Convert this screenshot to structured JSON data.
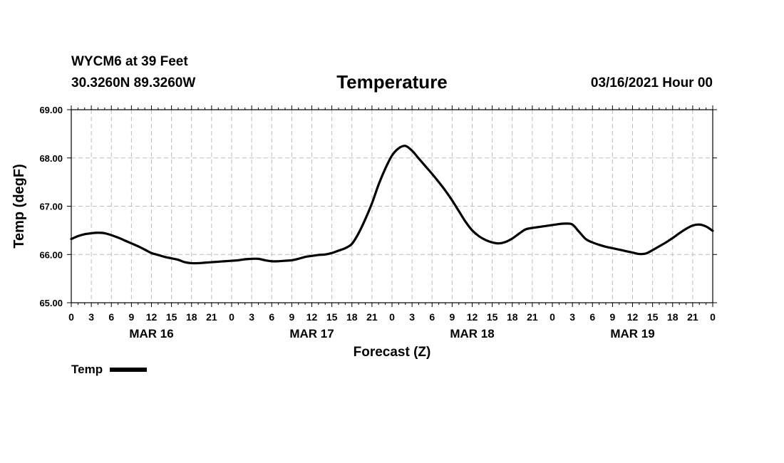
{
  "header": {
    "station": "WYCM6 at 39 Feet",
    "coordinates": "30.3260N 89.3260W",
    "run_time": "03/16/2021 Hour 00"
  },
  "chart_data": {
    "type": "line",
    "title": "Temperature",
    "xlabel": "Forecast (Z)",
    "ylabel": "Temp (degF)",
    "ylim": [
      65.0,
      69.0
    ],
    "yticks": [
      "65.00",
      "66.00",
      "67.00",
      "68.00",
      "69.00"
    ],
    "xlim_hours": [
      0,
      96
    ],
    "hour_tick_labels": [
      "0",
      "3",
      "6",
      "9",
      "12",
      "15",
      "18",
      "21",
      "0",
      "3",
      "6",
      "9",
      "12",
      "15",
      "18",
      "21",
      "0",
      "3",
      "6",
      "9",
      "12",
      "15",
      "18",
      "21",
      "0",
      "3",
      "6",
      "9",
      "12",
      "15",
      "18",
      "21",
      "0"
    ],
    "day_labels": [
      "MAR 16",
      "MAR 17",
      "MAR 18",
      "MAR 19"
    ],
    "grid": true,
    "legend_position": "bottom-left",
    "series": [
      {
        "name": "Temp",
        "color": "#000000",
        "x_hours": [
          0,
          1,
          2,
          3,
          4,
          5,
          6,
          7,
          8,
          9,
          10,
          11,
          12,
          13,
          14,
          15,
          16,
          17,
          18,
          19,
          20,
          21,
          22,
          23,
          24,
          25,
          26,
          27,
          28,
          29,
          30,
          31,
          32,
          33,
          34,
          35,
          36,
          37,
          38,
          39,
          40,
          41,
          42,
          43,
          44,
          45,
          46,
          47,
          48,
          49,
          50,
          51,
          52,
          53,
          54,
          55,
          56,
          57,
          58,
          59,
          60,
          61,
          62,
          63,
          64,
          65,
          66,
          67,
          68,
          69,
          70,
          71,
          72,
          73,
          74,
          75,
          76,
          77,
          78,
          79,
          80,
          81,
          82,
          83,
          84,
          85,
          86,
          87,
          88,
          89,
          90,
          91,
          92,
          93,
          94,
          95,
          96
        ],
        "values": [
          66.32,
          66.38,
          66.42,
          66.44,
          66.45,
          66.44,
          66.4,
          66.35,
          66.29,
          66.23,
          66.17,
          66.1,
          66.03,
          65.99,
          65.95,
          65.92,
          65.89,
          65.84,
          65.82,
          65.82,
          65.83,
          65.84,
          65.85,
          65.86,
          65.87,
          65.88,
          65.9,
          65.91,
          65.91,
          65.88,
          65.86,
          65.86,
          65.87,
          65.88,
          65.91,
          65.95,
          65.97,
          65.99,
          66.0,
          66.03,
          66.08,
          66.13,
          66.22,
          66.44,
          66.73,
          67.06,
          67.45,
          67.78,
          68.05,
          68.2,
          68.25,
          68.15,
          67.99,
          67.83,
          67.67,
          67.5,
          67.32,
          67.12,
          66.9,
          66.68,
          66.5,
          66.38,
          66.3,
          66.25,
          66.23,
          66.26,
          66.33,
          66.43,
          66.52,
          66.55,
          66.57,
          66.59,
          66.61,
          66.63,
          66.64,
          66.62,
          66.47,
          66.32,
          66.25,
          66.2,
          66.16,
          66.13,
          66.1,
          66.07,
          66.04,
          66.01,
          66.02,
          66.09,
          66.17,
          66.25,
          66.34,
          66.44,
          66.53,
          66.6,
          66.62,
          66.58,
          66.49
        ]
      }
    ]
  },
  "legend": {
    "label": "Temp"
  }
}
